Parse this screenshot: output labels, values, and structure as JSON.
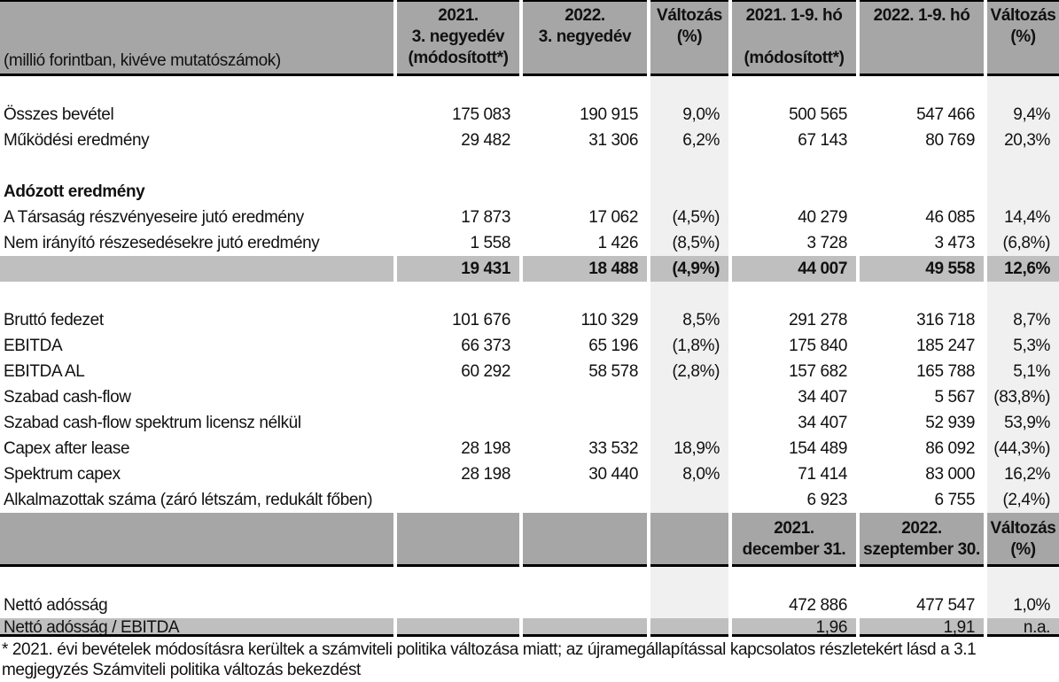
{
  "colors": {
    "header_bg": "#a6a6a6",
    "summary_bg": "#bfbfbf",
    "stripe_bg": "#f0f0f0",
    "border": "#000000"
  },
  "header1": {
    "unit_label": "(millió forintban, kivéve mutatószámok)",
    "c2": [
      "2021.",
      "3. negyedév",
      "(módosított*)"
    ],
    "c3": [
      "2022.",
      "3. negyedév",
      ""
    ],
    "c4": [
      "Változás",
      "(%)",
      ""
    ],
    "c5": [
      "2021. 1-9. hó",
      "",
      "(módosított*)"
    ],
    "c6": [
      "2022. 1-9. hó",
      "",
      ""
    ],
    "c7": [
      "Változás",
      "(%)",
      ""
    ]
  },
  "rows_top": [
    {
      "type": "blank",
      "label": "",
      "values": [
        "",
        "",
        "",
        "",
        "",
        ""
      ]
    },
    {
      "type": "data",
      "label": "Összes bevétel",
      "values": [
        "175 083",
        "190 915",
        "9,0%",
        "500 565",
        "547 466",
        "9,4%"
      ]
    },
    {
      "type": "data",
      "label": "Működési eredmény",
      "values": [
        "29 482",
        "31 306",
        "6,2%",
        "67 143",
        "80 769",
        "20,3%"
      ]
    },
    {
      "type": "blank",
      "label": "",
      "values": [
        "",
        "",
        "",
        "",
        "",
        ""
      ]
    },
    {
      "type": "section",
      "label": "Adózott eredmény",
      "values": [
        "",
        "",
        "",
        "",
        "",
        ""
      ]
    },
    {
      "type": "data",
      "label": "A Társaság részvényeseire jutó eredmény",
      "values": [
        "17 873",
        "17 062",
        "(4,5%)",
        "40 279",
        "46 085",
        "14,4%"
      ]
    },
    {
      "type": "data",
      "label": "Nem irányító részesedésekre jutó eredmény",
      "values": [
        "1 558",
        "1 426",
        "(8,5%)",
        "3 728",
        "3 473",
        "(6,8%)"
      ]
    },
    {
      "type": "total",
      "label": "",
      "values": [
        "19 431",
        "18 488",
        "(4,9%)",
        "44 007",
        "49 558",
        "12,6%"
      ]
    },
    {
      "type": "blank",
      "label": "",
      "values": [
        "",
        "",
        "",
        "",
        "",
        ""
      ]
    },
    {
      "type": "data",
      "label": "Bruttó fedezet",
      "values": [
        "101 676",
        "110 329",
        "8,5%",
        "291 278",
        "316 718",
        "8,7%"
      ]
    },
    {
      "type": "data",
      "label": "EBITDA",
      "values": [
        "66 373",
        "65 196",
        "(1,8%)",
        "175 840",
        "185 247",
        "5,3%"
      ]
    },
    {
      "type": "data",
      "label": "EBITDA AL",
      "values": [
        "60 292",
        "58 578",
        "(2,8%)",
        "157 682",
        "165 788",
        "5,1%"
      ]
    },
    {
      "type": "data",
      "label": "Szabad cash-flow",
      "values": [
        "",
        "",
        "",
        "34 407",
        "5 567",
        "(83,8%)"
      ]
    },
    {
      "type": "data",
      "label": "Szabad cash-flow spektrum licensz nélkül",
      "values": [
        "",
        "",
        "",
        "34 407",
        "52 939",
        "53,9%"
      ]
    },
    {
      "type": "data",
      "label": "Capex after lease",
      "values": [
        "28 198",
        "33 532",
        "18,9%",
        "154 489",
        "86 092",
        "(44,3%)"
      ]
    },
    {
      "type": "data",
      "label": "Spektrum capex",
      "values": [
        "28 198",
        "30 440",
        "8,0%",
        "71 414",
        "83 000",
        "16,2%"
      ]
    },
    {
      "type": "data",
      "label": "Alkalmazottak száma (záró létszám, redukált főben)",
      "values": [
        "",
        "",
        "",
        "6 923",
        "6 755",
        "(2,4%)"
      ]
    }
  ],
  "header2": {
    "c5": [
      "2021.",
      "december 31."
    ],
    "c6": [
      "2022.",
      "szeptember 30."
    ],
    "c7": [
      "Változás",
      "(%)"
    ]
  },
  "rows_bottom": [
    {
      "type": "blank",
      "label": "",
      "values": [
        "",
        "",
        "",
        "",
        "",
        ""
      ]
    },
    {
      "type": "data",
      "label": "Nettó adósság",
      "values": [
        "",
        "",
        "",
        "472 886",
        "477 547",
        "1,0%"
      ]
    },
    {
      "type": "ratio",
      "label": "Nettó adósság / EBITDA",
      "values": [
        "",
        "",
        "",
        "1,96",
        "1,91",
        "n.a."
      ]
    }
  ],
  "footnote": {
    "line1": "* 2021. évi bevételek módosításra kerültek a számviteli politika változása miatt; az újramegállapítással kapcsolatos részletekért lásd a 3.1",
    "line2": "megjegyzés Számviteli politika változás bekezdést"
  }
}
